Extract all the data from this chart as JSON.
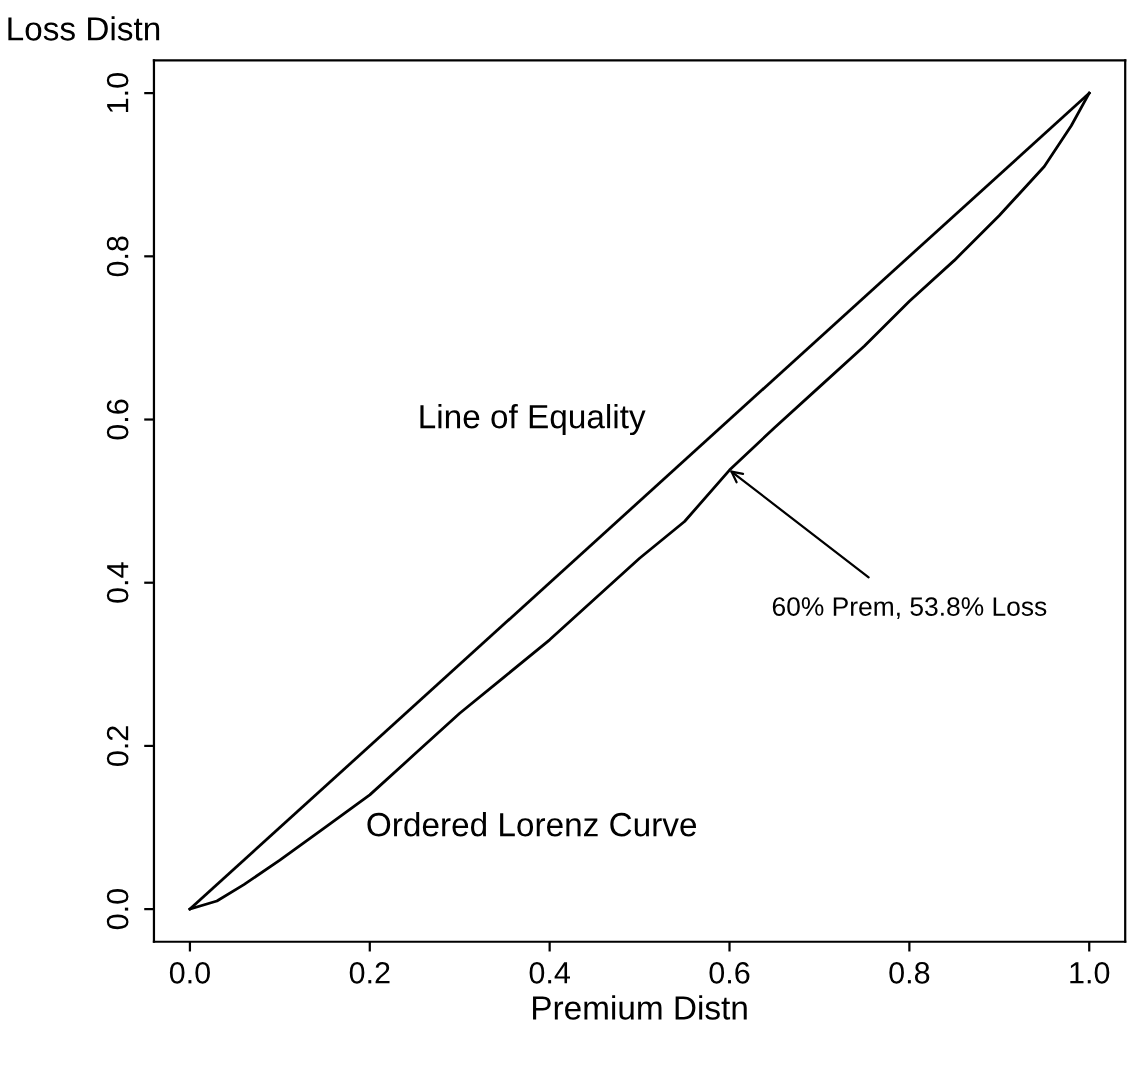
{
  "chart_data": {
    "type": "line",
    "xlabel": "Premium Distn",
    "ylabel": "Loss Distn",
    "xlim": [
      -0.04,
      1.04
    ],
    "ylim": [
      -0.04,
      1.04
    ],
    "xticks": [
      {
        "value": 0,
        "label": "0.0"
      },
      0.2,
      0.4,
      0.6,
      0.8,
      {
        "value": 1,
        "label": "1.0"
      }
    ],
    "yticks": [
      {
        "value": 0,
        "label": "0.0"
      },
      0.2,
      0.4,
      0.6,
      0.8,
      {
        "value": 1,
        "label": "1.0"
      }
    ],
    "grid": false,
    "legend": false,
    "marker": "none",
    "line_style": "solid",
    "series": [
      {
        "name": "Line of Equality",
        "color": "#000000",
        "x": [
          0,
          1
        ],
        "values": [
          0,
          1
        ]
      },
      {
        "name": "Ordered Lorenz Curve",
        "color": "#000000",
        "x": [
          0,
          0.03,
          0.06,
          0.1,
          0.15,
          0.2,
          0.25,
          0.3,
          0.35,
          0.4,
          0.45,
          0.5,
          0.55,
          0.6,
          0.65,
          0.7,
          0.75,
          0.8,
          0.85,
          0.9,
          0.95,
          0.98,
          1
        ],
        "values": [
          0,
          0.01,
          0.03,
          0.06,
          0.1,
          0.14,
          0.19,
          0.24,
          0.285,
          0.33,
          0.38,
          0.43,
          0.475,
          0.538,
          0.59,
          0.64,
          0.69,
          0.745,
          0.795,
          0.85,
          0.91,
          0.96,
          1
        ]
      }
    ],
    "annotations": [
      {
        "text": "60% Prem, 53.8% Loss",
        "x": 0.6,
        "y": 0.538
      }
    ]
  }
}
